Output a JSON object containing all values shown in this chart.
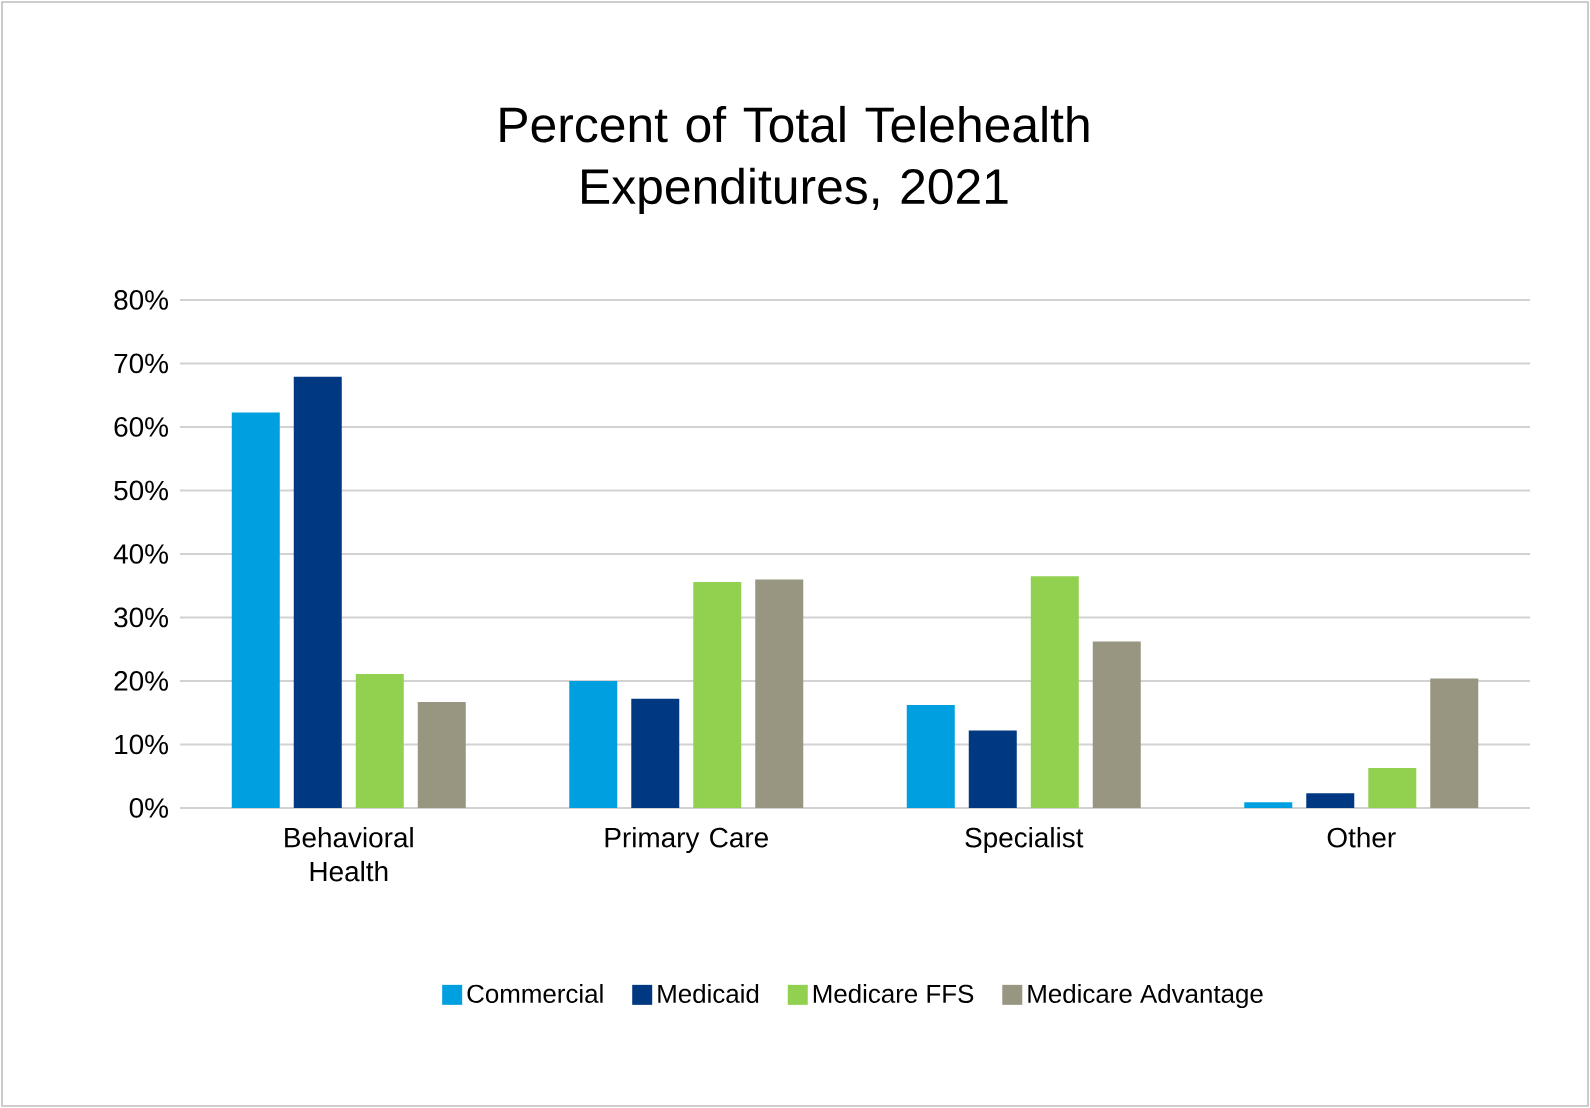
{
  "chart_data": {
    "type": "bar",
    "title": "Percent of Total Telehealth Expenditures, 2021",
    "categories": [
      "Behavioral Health",
      "Primary Care",
      "Specialist",
      "Other"
    ],
    "series": [
      {
        "name": "Commercial",
        "color": "#00a0e0",
        "values": [
          62.3,
          20.0,
          16.2,
          0.9
        ]
      },
      {
        "name": "Medicaid",
        "color": "#003882",
        "values": [
          67.9,
          17.2,
          12.2,
          2.3
        ]
      },
      {
        "name": "Medicare FFS",
        "color": "#92d050",
        "values": [
          21.1,
          35.6,
          36.5,
          6.3
        ]
      },
      {
        "name": "Medicare Advantage",
        "color": "#989680",
        "values": [
          16.7,
          36.0,
          26.2,
          20.4
        ]
      }
    ],
    "ylim": [
      0,
      80
    ],
    "yticks": [
      {
        "value": 0,
        "label": "0%"
      },
      {
        "value": 10,
        "label": "10%"
      },
      {
        "value": 20,
        "label": "20%"
      },
      {
        "value": 30,
        "label": "30%"
      },
      {
        "value": 40,
        "label": "40%"
      },
      {
        "value": 50,
        "label": "50%"
      },
      {
        "value": 60,
        "label": "60%"
      },
      {
        "value": 70,
        "label": "70%"
      },
      {
        "value": 80,
        "label": "80%"
      }
    ],
    "grid": "y",
    "legend": "bottom"
  }
}
